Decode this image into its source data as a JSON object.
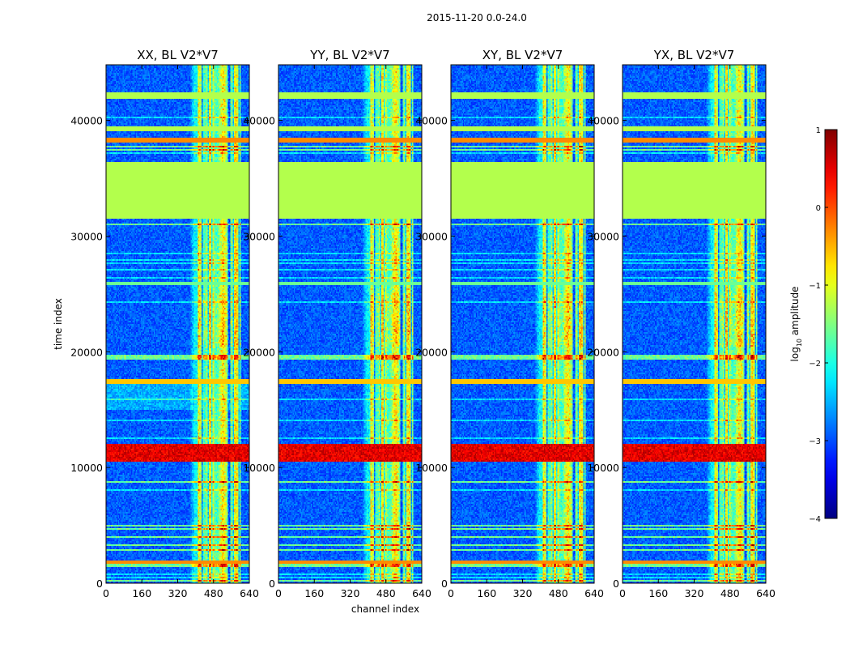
{
  "chart_data": {
    "type": "heatmap",
    "suptitle": "2015-11-20 0.0-24.0",
    "xlabel": "channel index",
    "ylabel": "time index",
    "x_ticks": [
      "0",
      "160",
      "320",
      "480",
      "640"
    ],
    "x_tick_values": [
      0,
      160,
      320,
      480,
      640
    ],
    "y_ticks": [
      "0",
      "10000",
      "20000",
      "30000",
      "40000"
    ],
    "y_tick_values": [
      0,
      10000,
      20000,
      30000,
      40000
    ],
    "xlim": [
      0,
      640
    ],
    "ylim": [
      0,
      44800
    ],
    "colormap": "jet",
    "colorbar": {
      "label_prefix": "log",
      "label_subscript": "10",
      "label_suffix": " amplitude",
      "range": [
        -4,
        1
      ],
      "ticks": [
        "1",
        "0",
        "−1",
        "−2",
        "−3",
        "−4"
      ],
      "tick_values": [
        1,
        0,
        -1,
        -2,
        -3,
        -4
      ]
    },
    "panels": [
      {
        "title": "XX, BL V2*V7",
        "polarization": "XX"
      },
      {
        "title": "YY, BL V2*V7",
        "polarization": "YY"
      },
      {
        "title": "XY, BL V2*V7",
        "polarization": "XY"
      },
      {
        "title": "YX, BL V2*V7",
        "polarization": "YX"
      }
    ],
    "bright_channel_range": [
      400,
      600
    ],
    "flagged_time_range": [
      31500,
      36400
    ],
    "flagged_value": -1.25,
    "strong_rfi_time_range": [
      10500,
      12000
    ],
    "horizontal_bands": [
      {
        "t0": 1700,
        "t1": 2000,
        "value": -0.3
      },
      {
        "t0": 38100,
        "t1": 38500,
        "value": -0.3
      },
      {
        "t0": 39000,
        "t1": 39500,
        "value": -1.25
      },
      {
        "t0": 41800,
        "t1": 42400,
        "value": -1.25
      },
      {
        "t0": 17200,
        "t1": 17600,
        "value": -0.6
      },
      {
        "t0": 25700,
        "t1": 26000,
        "value": -1.6
      }
    ]
  }
}
